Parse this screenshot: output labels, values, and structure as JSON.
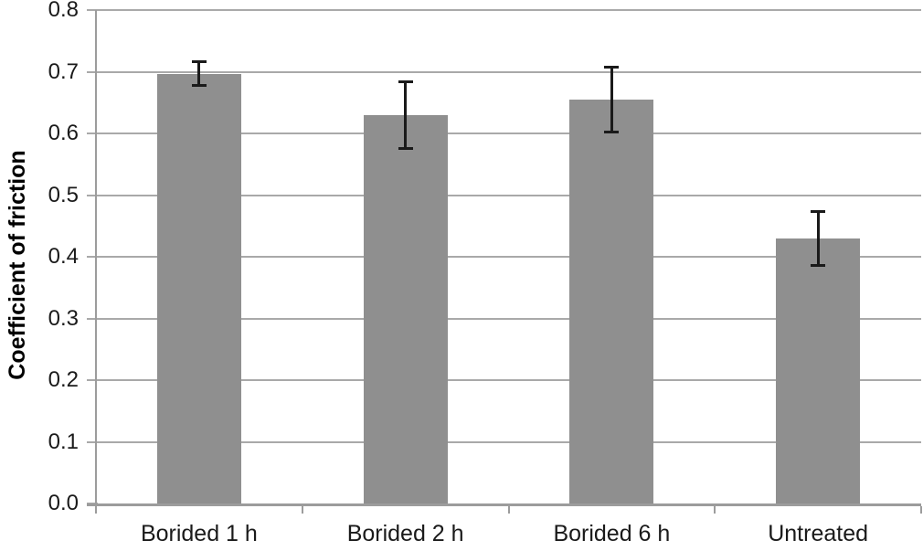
{
  "figure": {
    "background": "#ffffff"
  },
  "chart_data": {
    "type": "bar",
    "title": "",
    "xlabel": "",
    "ylabel": "Coefficient of friction",
    "categories": [
      "Borided 1 h",
      "Borided 2 h",
      "Borided 6 h",
      "Untreated"
    ],
    "series": [
      {
        "name": "Coefficient of friction",
        "values": [
          0.697,
          0.63,
          0.655,
          0.43
        ],
        "error_bars": [
          0.022,
          0.056,
          0.055,
          0.046
        ]
      }
    ],
    "ylim": [
      0.0,
      0.8
    ],
    "ytick_labels": [
      "0.0",
      "0.1",
      "0.2",
      "0.3",
      "0.4",
      "0.5",
      "0.6",
      "0.7",
      "0.8"
    ],
    "grid": true,
    "legend": false,
    "colors": {
      "bar": "#8f8f8f",
      "gridline": "#a9a9a9",
      "axis": "#9c9c9c",
      "error_bar": "#1a1a1a",
      "text": "#1a1a1a"
    }
  }
}
